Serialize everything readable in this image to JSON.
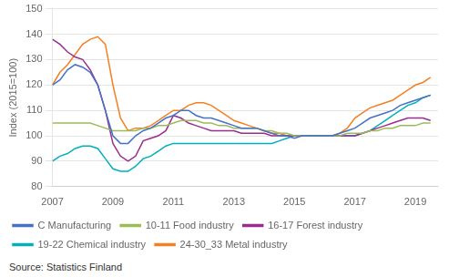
{
  "chart_data": {
    "type": "line",
    "ylabel": "Index (2015=100)",
    "annotations": [
      "Source: Statistics Finland"
    ],
    "x": [
      2007.0,
      2007.25,
      2007.5,
      2007.75,
      2008.0,
      2008.25,
      2008.5,
      2008.75,
      2009.0,
      2009.25,
      2009.5,
      2009.75,
      2010.0,
      2010.25,
      2010.5,
      2010.75,
      2011.0,
      2011.25,
      2011.5,
      2011.75,
      2012.0,
      2012.25,
      2012.5,
      2012.75,
      2013.0,
      2013.25,
      2013.5,
      2013.75,
      2014.0,
      2014.25,
      2014.5,
      2014.75,
      2015.0,
      2015.25,
      2015.5,
      2015.75,
      2016.0,
      2016.25,
      2016.5,
      2016.75,
      2017.0,
      2017.25,
      2017.5,
      2017.75,
      2018.0,
      2018.25,
      2018.5,
      2018.75,
      2019.0,
      2019.25,
      2019.5
    ],
    "series": [
      {
        "name": "C Manufacturing",
        "color": "#4472C4",
        "values": [
          120,
          122,
          126,
          128,
          127,
          125,
          120,
          110,
          100,
          97,
          97,
          100,
          102,
          103,
          105,
          107,
          108,
          110,
          110,
          108,
          107,
          107,
          106,
          105,
          104,
          103,
          103,
          103,
          102,
          101,
          100,
          100,
          99,
          100,
          100,
          100,
          100,
          100,
          101,
          102,
          103,
          105,
          107,
          108,
          109,
          110,
          112,
          113,
          114,
          115,
          116
        ]
      },
      {
        "name": "10-11 Food industry",
        "color": "#9BBB59",
        "values": [
          105,
          105,
          105,
          105,
          105,
          105,
          104,
          103,
          102,
          102,
          102,
          102,
          103,
          103,
          104,
          104,
          105,
          106,
          106,
          106,
          105,
          105,
          104,
          104,
          103,
          103,
          103,
          103,
          102,
          102,
          101,
          101,
          100,
          100,
          100,
          100,
          100,
          100,
          100,
          101,
          101,
          101,
          102,
          102,
          103,
          103,
          104,
          104,
          104,
          105,
          105
        ]
      },
      {
        "name": "16-17 Forest industry",
        "color": "#9B2D8E",
        "values": [
          138,
          136,
          133,
          131,
          130,
          126,
          120,
          110,
          97,
          92,
          90,
          92,
          98,
          99,
          100,
          102,
          108,
          107,
          105,
          104,
          103,
          102,
          102,
          102,
          102,
          101,
          101,
          101,
          101,
          100,
          100,
          100,
          100,
          100,
          100,
          100,
          100,
          100,
          100,
          100,
          100,
          101,
          102,
          103,
          104,
          105,
          106,
          107,
          107,
          107,
          106
        ]
      },
      {
        "name": "19-22 Chemical industry",
        "color": "#00B0BF",
        "values": [
          90,
          92,
          93,
          95,
          96,
          96,
          95,
          91,
          87,
          86,
          86,
          88,
          91,
          92,
          94,
          96,
          97,
          97,
          97,
          97,
          97,
          97,
          97,
          97,
          97,
          97,
          97,
          97,
          97,
          97,
          98,
          99,
          100,
          100,
          100,
          100,
          100,
          100,
          100,
          100,
          100,
          101,
          102,
          104,
          106,
          108,
          110,
          112,
          113,
          115,
          116
        ]
      },
      {
        "name": "24-30_33 Metal industry",
        "color": "#F48024",
        "values": [
          120,
          125,
          128,
          132,
          136,
          138,
          139,
          136,
          120,
          107,
          102,
          103,
          103,
          104,
          106,
          108,
          110,
          110,
          112,
          113,
          113,
          112,
          110,
          108,
          106,
          105,
          104,
          103,
          102,
          101,
          101,
          100,
          100,
          100,
          100,
          100,
          100,
          100,
          101,
          103,
          107,
          109,
          111,
          112,
          113,
          114,
          116,
          118,
          120,
          121,
          123
        ]
      }
    ],
    "xlim": [
      2007.0,
      2019.75
    ],
    "xticks": [
      2007,
      2009,
      2011,
      2013,
      2015,
      2017,
      2019
    ],
    "ylim": [
      80,
      150
    ],
    "yticks": [
      80,
      90,
      100,
      110,
      120,
      130,
      140,
      150
    ],
    "grid": "y",
    "legend": "bottom"
  }
}
